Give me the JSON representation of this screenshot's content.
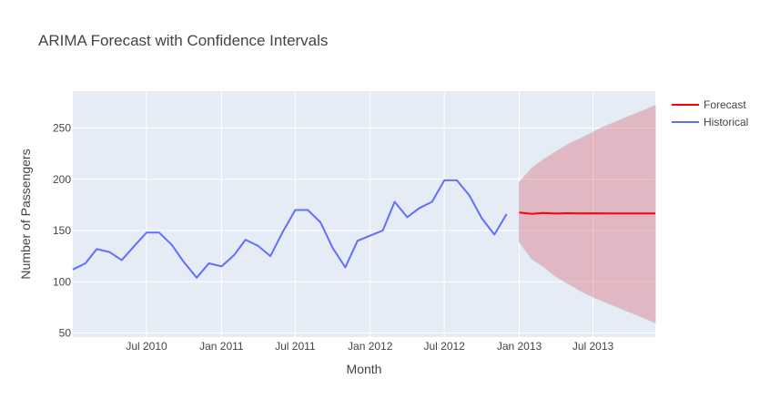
{
  "chart_data": {
    "type": "line",
    "title": "ARIMA Forecast with Confidence Intervals",
    "xlabel": "Month",
    "ylabel": "Number of Passengers",
    "xlim": [
      "2010-01-01",
      "2013-12-01"
    ],
    "ylim": [
      46,
      286
    ],
    "x_ticks": [
      "2010-07-01",
      "2011-01-01",
      "2011-07-01",
      "2012-01-01",
      "2012-07-01",
      "2013-01-01",
      "2013-07-01"
    ],
    "x_tick_labels": [
      "Jul 2010",
      "Jan 2011",
      "Jul 2011",
      "Jan 2012",
      "Jul 2012",
      "Jan 2013",
      "Jul 2013"
    ],
    "y_ticks": [
      50,
      100,
      150,
      200,
      250
    ],
    "grid": true,
    "legend_position": "top-right",
    "series": [
      {
        "name": "Historical",
        "color": "#636efa",
        "x": [
          "2010-01-01",
          "2010-02-01",
          "2010-03-01",
          "2010-04-01",
          "2010-05-01",
          "2010-06-01",
          "2010-07-01",
          "2010-08-01",
          "2010-09-01",
          "2010-10-01",
          "2010-11-01",
          "2010-12-01",
          "2011-01-01",
          "2011-02-01",
          "2011-03-01",
          "2011-04-01",
          "2011-05-01",
          "2011-06-01",
          "2011-07-01",
          "2011-08-01",
          "2011-09-01",
          "2011-10-01",
          "2011-11-01",
          "2011-12-01",
          "2012-01-01",
          "2012-02-01",
          "2012-03-01",
          "2012-04-01",
          "2012-05-01",
          "2012-06-01",
          "2012-07-01",
          "2012-08-01",
          "2012-09-01",
          "2012-10-01",
          "2012-11-01",
          "2012-12-01"
        ],
        "y": [
          112,
          118,
          132,
          129,
          121,
          135,
          148,
          148,
          136,
          119,
          104,
          118,
          115,
          126,
          141,
          135,
          125,
          149,
          170,
          170,
          158,
          133,
          114,
          140,
          145,
          150,
          178,
          163,
          172,
          178,
          199,
          199,
          184,
          162,
          146,
          166
        ]
      },
      {
        "name": "Forecast",
        "color": "#ff0000",
        "x": [
          "2013-01-01",
          "2013-02-01",
          "2013-03-01",
          "2013-04-01",
          "2013-05-01",
          "2013-06-01",
          "2013-07-01",
          "2013-08-01",
          "2013-09-01",
          "2013-10-01",
          "2013-11-01",
          "2013-12-01"
        ],
        "y": [
          167.5,
          166.3,
          167.1,
          166.5,
          166.9,
          166.6,
          166.8,
          166.7,
          166.7,
          166.7,
          166.7,
          166.7
        ]
      }
    ],
    "confidence_interval": {
      "color": "rgba(220, 60, 80, 0.3)",
      "x": [
        "2013-01-01",
        "2013-02-01",
        "2013-03-01",
        "2013-04-01",
        "2013-05-01",
        "2013-06-01",
        "2013-07-01",
        "2013-08-01",
        "2013-09-01",
        "2013-10-01",
        "2013-11-01",
        "2013-12-01"
      ],
      "lower": [
        139,
        122,
        115,
        105,
        98,
        91,
        85,
        80,
        75,
        70,
        65,
        60
      ],
      "upper": [
        197,
        211,
        219,
        227,
        234,
        240,
        246,
        252,
        257,
        262,
        267,
        272
      ]
    }
  }
}
